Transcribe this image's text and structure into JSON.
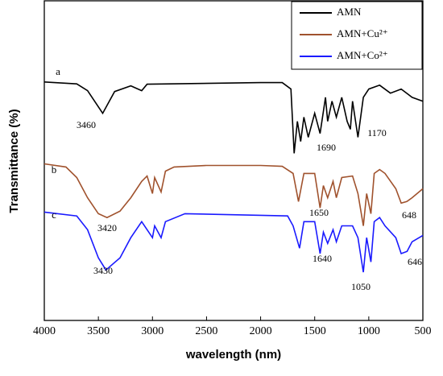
{
  "chart_data": {
    "type": "line",
    "x_label": "wavelength (nm)",
    "y_label": "Transmittance (%)",
    "xlim": [
      4000,
      500
    ],
    "xticks": [
      4000,
      3500,
      3000,
      2500,
      2000,
      1500,
      1000,
      500
    ],
    "ylim": [
      0,
      100
    ],
    "legend": "upper right",
    "annotations": [
      "a",
      "b",
      "c",
      "3460",
      "1690",
      "1170",
      "3420",
      "1650",
      "648",
      "3430",
      "1640",
      "1050",
      "646"
    ],
    "series": [
      {
        "name": "AMN",
        "color": "#000000",
        "x": [
          4000,
          3700,
          3600,
          3460,
          3350,
          3200,
          3100,
          3050,
          2000,
          1800,
          1720,
          1690,
          1660,
          1630,
          1600,
          1560,
          1500,
          1450,
          1400,
          1380,
          1340,
          1300,
          1250,
          1200,
          1170,
          1150,
          1100,
          1050,
          1000,
          900,
          800,
          700,
          600,
          500
        ],
        "values": [
          74.6,
          74,
          71.9,
          64.8,
          71.6,
          73.4,
          71.9,
          73.9,
          74.4,
          74.4,
          72.4,
          52.3,
          62.3,
          56,
          63.6,
          57.3,
          64.8,
          58.5,
          69.8,
          62.3,
          68.6,
          63.6,
          69.8,
          62.3,
          59.8,
          68.6,
          57.3,
          69.8,
          72.4,
          73.6,
          71.1,
          72.4,
          69.8,
          68.6
        ]
      },
      {
        "name": "AMN+Cu²⁺",
        "color": "#a0522d",
        "x": [
          4000,
          3800,
          3700,
          3600,
          3500,
          3420,
          3300,
          3200,
          3100,
          3050,
          3000,
          2980,
          2920,
          2880,
          2800,
          2500,
          2000,
          1800,
          1700,
          1650,
          1600,
          1500,
          1450,
          1420,
          1380,
          1330,
          1300,
          1250,
          1150,
          1100,
          1050,
          1020,
          980,
          950,
          900,
          850,
          750,
          700,
          648,
          600,
          500
        ],
        "values": [
          49,
          48,
          44.7,
          38.4,
          33.4,
          32.2,
          34.2,
          38.4,
          43.5,
          45.2,
          39.7,
          44.7,
          40.2,
          46.7,
          48,
          48.5,
          48.5,
          48.2,
          46,
          37.2,
          46,
          46,
          35.2,
          42.2,
          38.4,
          43.5,
          38.4,
          44.7,
          45.2,
          39.7,
          29.6,
          39.7,
          33.4,
          46,
          47.2,
          46,
          41.2,
          36.7,
          37.2,
          38.4,
          41.2
        ]
      },
      {
        "name": "AMN+Co²⁺",
        "color": "#1a1aff",
        "x": [
          4000,
          3700,
          3600,
          3500,
          3430,
          3300,
          3200,
          3100,
          3000,
          2980,
          2920,
          2880,
          2700,
          2000,
          1750,
          1700,
          1640,
          1600,
          1500,
          1450,
          1420,
          1380,
          1330,
          1300,
          1250,
          1150,
          1100,
          1050,
          1020,
          980,
          950,
          900,
          850,
          750,
          700,
          646,
          600,
          500
        ],
        "values": [
          33.9,
          32.7,
          28.4,
          19.6,
          15.8,
          19.6,
          25.9,
          30.9,
          25.9,
          29.6,
          25.9,
          30.9,
          33.4,
          32.9,
          32.7,
          29.6,
          22.6,
          30.9,
          30.9,
          20.9,
          27.6,
          24.1,
          28.4,
          24.6,
          29.6,
          29.6,
          25.9,
          15.1,
          25.9,
          18.3,
          30.9,
          32.2,
          29.6,
          25.9,
          20.9,
          21.6,
          24.6,
          26.6
        ]
      }
    ]
  }
}
